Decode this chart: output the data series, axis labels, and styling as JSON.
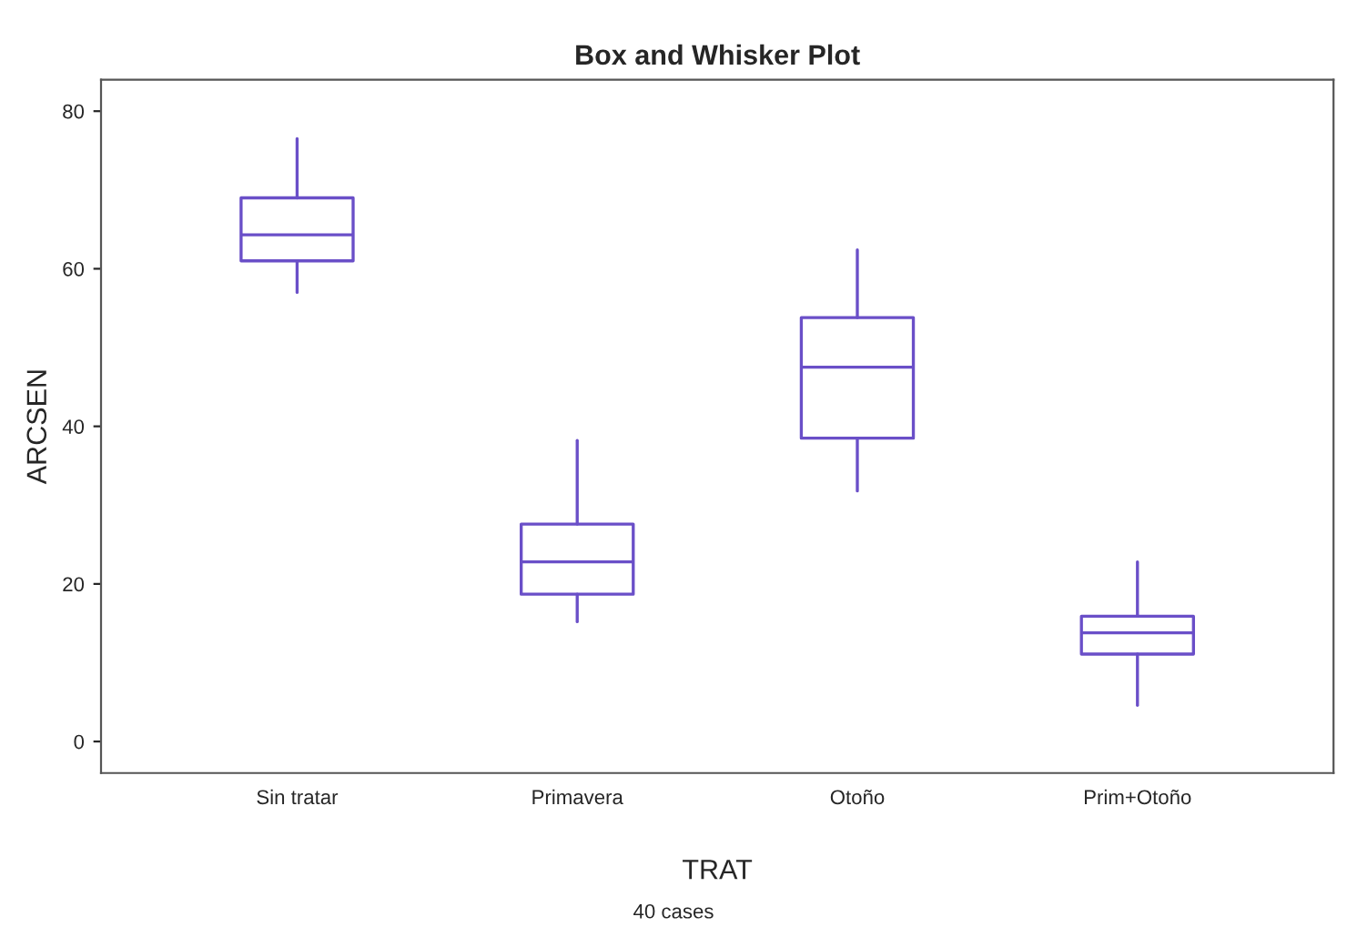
{
  "chart_data": {
    "type": "box",
    "title": "Box and Whisker Plot",
    "xlabel": "TRAT",
    "ylabel": "ARCSEN",
    "categories": [
      "Sin tratar",
      "Primavera",
      "Otoño",
      "Prim+Otoño"
    ],
    "boxes": [
      {
        "low": 57,
        "q1": 61,
        "median": 64.3,
        "q3": 69,
        "high": 76.5
      },
      {
        "low": 15.2,
        "q1": 18.7,
        "median": 22.8,
        "q3": 27.6,
        "high": 38.2
      },
      {
        "low": 31.8,
        "q1": 38.5,
        "median": 47.5,
        "q3": 53.8,
        "high": 62.4
      },
      {
        "low": 4.6,
        "q1": 11.1,
        "median": 13.8,
        "q3": 15.9,
        "high": 22.8
      }
    ],
    "color": "#6a4fc8",
    "ylim": [
      -4,
      84
    ],
    "yticks": [
      0,
      20,
      40,
      60,
      80
    ],
    "grid": false,
    "annotations": [
      "40 cases"
    ]
  }
}
